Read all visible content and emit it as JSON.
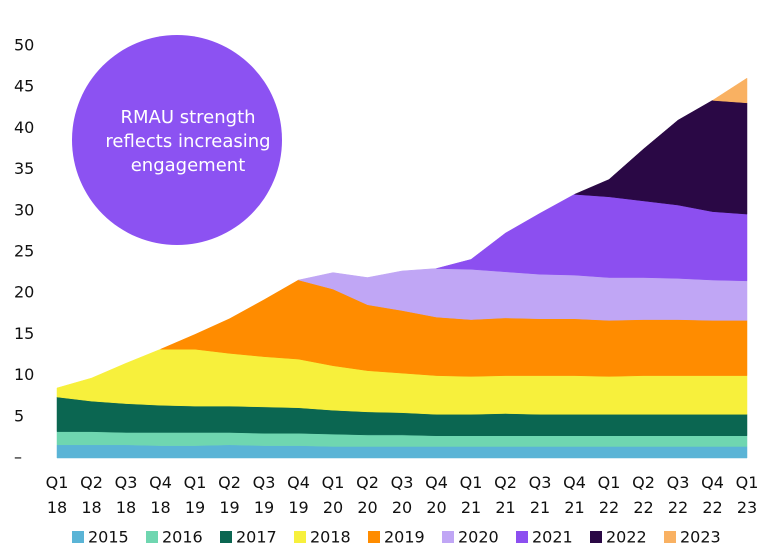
{
  "chart_data": {
    "type": "stacked_area",
    "annotation": [
      "RMAU strength",
      "reflects increasing",
      "engagement"
    ],
    "annotation_color": "#8c52f2",
    "categories": [
      "Q1 18",
      "Q2 18",
      "Q3 18",
      "Q4 18",
      "Q1 19",
      "Q2 19",
      "Q3 19",
      "Q4 19",
      "Q1 20",
      "Q2 20",
      "Q3 20",
      "Q4 20",
      "Q1 21",
      "Q2 21",
      "Q3 21",
      "Q4 21",
      "Q1 22",
      "Q2 22",
      "Q3 22",
      "Q4 22",
      "Q1 23"
    ],
    "series": [
      {
        "name": "2015",
        "color": "#5ab4d6",
        "values": [
          1.6,
          1.6,
          1.6,
          1.5,
          1.5,
          1.6,
          1.5,
          1.5,
          1.4,
          1.4,
          1.4,
          1.4,
          1.4,
          1.4,
          1.4,
          1.4,
          1.4,
          1.4,
          1.4,
          1.4,
          1.4
        ]
      },
      {
        "name": "2016",
        "color": "#6fd6b0",
        "values": [
          1.6,
          1.6,
          1.5,
          1.6,
          1.6,
          1.5,
          1.5,
          1.5,
          1.5,
          1.4,
          1.4,
          1.3,
          1.3,
          1.3,
          1.3,
          1.3,
          1.3,
          1.3,
          1.3,
          1.3,
          1.3
        ]
      },
      {
        "name": "2017",
        "color": "#0b6651",
        "values": [
          4.2,
          3.7,
          3.5,
          3.3,
          3.2,
          3.2,
          3.2,
          3.1,
          2.9,
          2.8,
          2.7,
          2.6,
          2.6,
          2.7,
          2.6,
          2.6,
          2.6,
          2.6,
          2.6,
          2.6,
          2.6
        ]
      },
      {
        "name": "2018",
        "color": "#f7f03c",
        "values": [
          1.1,
          2.8,
          4.9,
          6.8,
          6.9,
          6.4,
          6.1,
          5.9,
          5.4,
          5.0,
          4.8,
          4.7,
          4.6,
          4.6,
          4.7,
          4.7,
          4.6,
          4.7,
          4.7,
          4.7,
          4.7
        ]
      },
      {
        "name": "2019",
        "color": "#ff8c00",
        "values": [
          null,
          null,
          null,
          0,
          1.8,
          4.2,
          6.9,
          9.6,
          9.3,
          8.0,
          7.6,
          7.1,
          6.9,
          7.0,
          6.9,
          6.9,
          6.8,
          6.8,
          6.8,
          6.7,
          6.7
        ]
      },
      {
        "name": "2020",
        "color": "#c0a6f5",
        "values": [
          null,
          null,
          null,
          null,
          null,
          null,
          null,
          0,
          2.0,
          3.3,
          4.8,
          5.9,
          6.1,
          5.6,
          5.4,
          5.3,
          5.2,
          5.1,
          5.0,
          4.9,
          4.8
        ]
      },
      {
        "name": "2021",
        "color": "#8c4ff0",
        "values": [
          null,
          null,
          null,
          null,
          null,
          null,
          null,
          null,
          null,
          null,
          null,
          0,
          1.2,
          4.7,
          7.4,
          9.8,
          9.8,
          9.3,
          8.9,
          8.3,
          8.1
        ]
      },
      {
        "name": "2022",
        "color": "#2a0845",
        "values": [
          null,
          null,
          null,
          null,
          null,
          null,
          null,
          null,
          null,
          null,
          null,
          null,
          null,
          null,
          null,
          0,
          2.1,
          6.3,
          10.3,
          13.5,
          13.5
        ]
      },
      {
        "name": "2023",
        "color": "#f9b162",
        "values": [
          null,
          null,
          null,
          null,
          null,
          null,
          null,
          null,
          null,
          null,
          null,
          null,
          null,
          null,
          null,
          null,
          null,
          null,
          null,
          0,
          3.0
        ]
      }
    ],
    "ylim": [
      0,
      50
    ],
    "yticks": [
      {
        "value": 0,
        "label": "–"
      },
      5,
      10,
      15,
      20,
      25,
      30,
      35,
      40,
      45,
      50
    ],
    "grid": false,
    "legend": "bottom"
  }
}
